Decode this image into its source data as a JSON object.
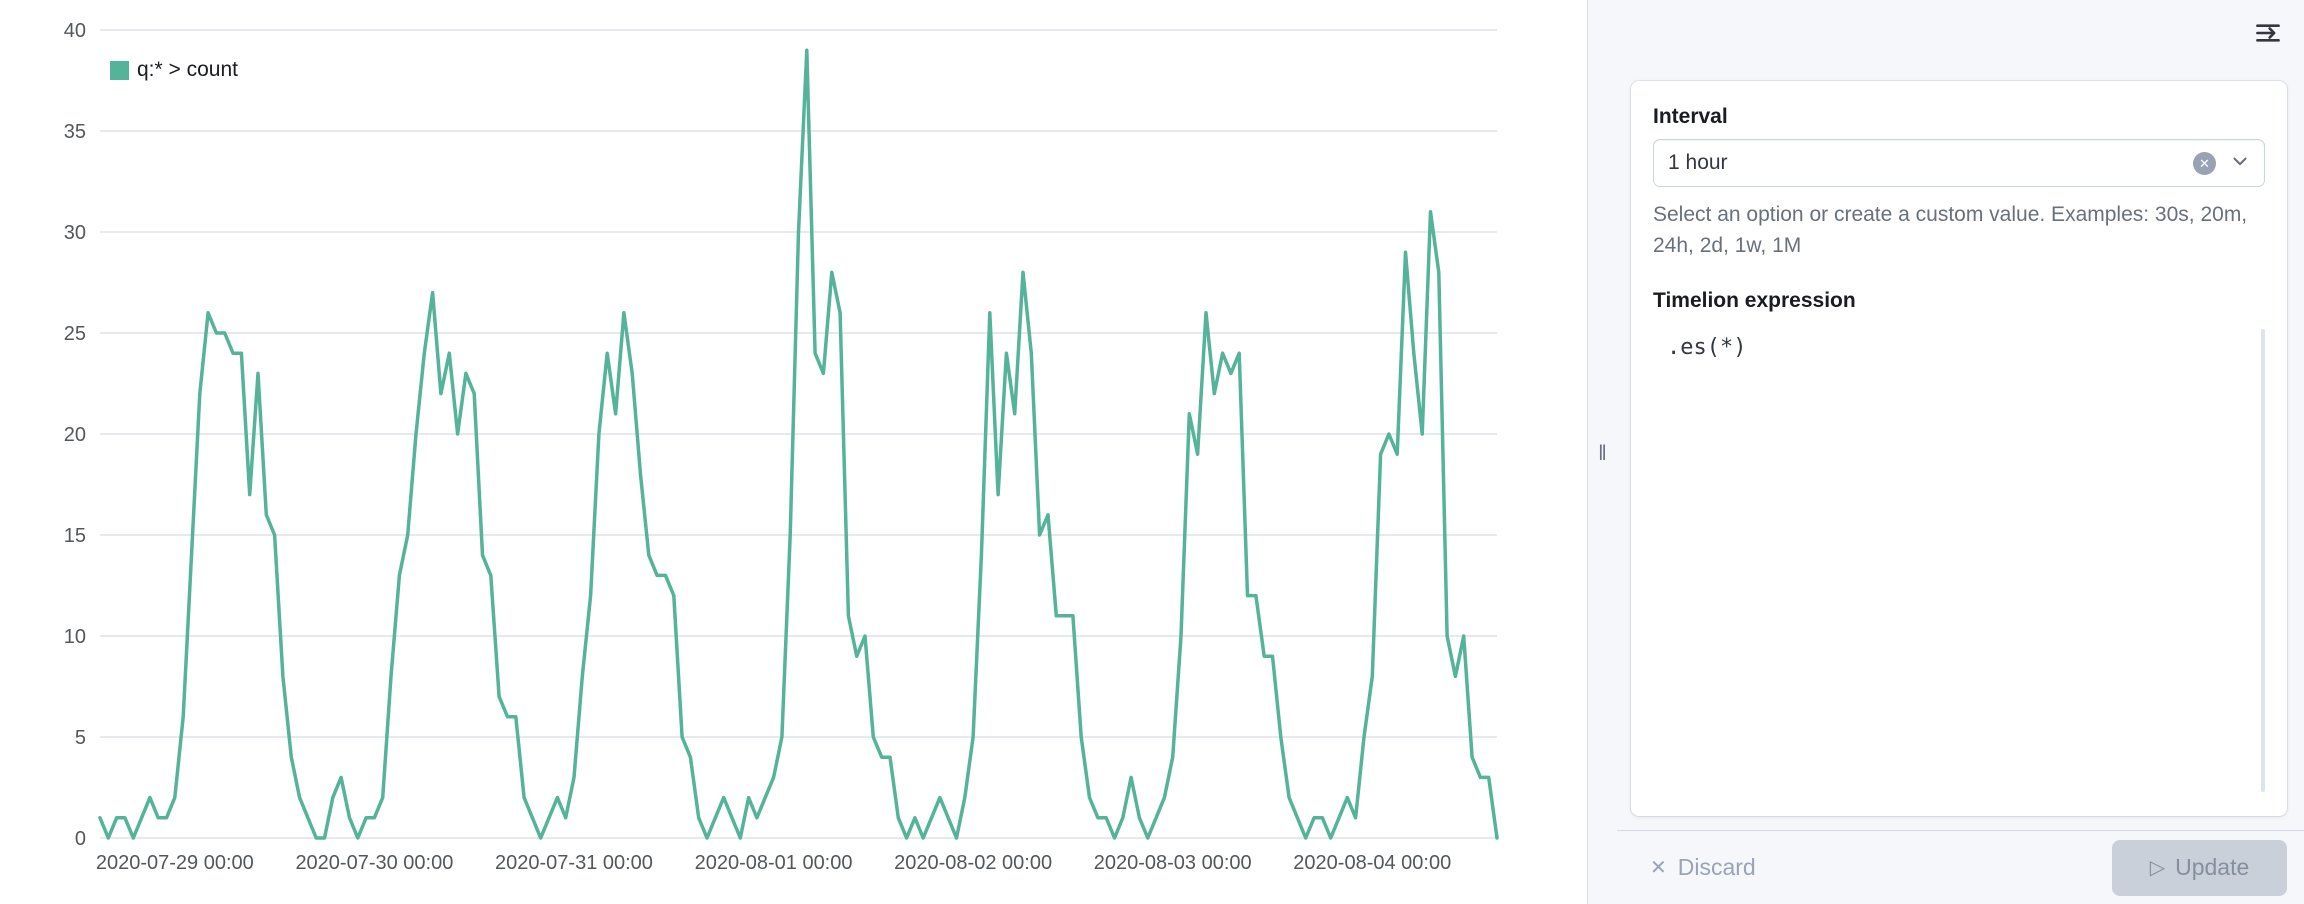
{
  "panel": {
    "interval_label": "Interval",
    "interval_value": "1 hour",
    "interval_help": "Select an option or create a custom value. Examples: 30s, 20m, 24h, 2d, 1w, 1M",
    "expression_label": "Timelion expression",
    "expression_value": ".es(*)",
    "discard_label": "Discard",
    "update_label": "Update"
  },
  "icons": {
    "clear_glyph": "✕",
    "discard_glyph": "✕",
    "play_glyph": "▷",
    "resizer_grip": "‖"
  },
  "colors": {
    "series": "#54B399",
    "panel_bg": "#F5F7FA",
    "grid": "#E7EAED",
    "axis_text": "#53575A"
  },
  "chart_data": {
    "type": "line",
    "legend": "q:* > count",
    "color": "#54B399",
    "start": "2020-07-28 15:00",
    "interval": "1h",
    "ylim": [
      0,
      40
    ],
    "y_ticks": [
      0,
      5,
      10,
      15,
      20,
      25,
      30,
      35,
      40
    ],
    "x_tick_labels": [
      "2020-07-29 00:00",
      "2020-07-30 00:00",
      "2020-07-31 00:00",
      "2020-08-01 00:00",
      "2020-08-02 00:00",
      "2020-08-03 00:00",
      "2020-08-04 00:00"
    ],
    "x_tick_indices": [
      9,
      33,
      57,
      81,
      105,
      129,
      153
    ],
    "grid": true,
    "legend_position": "top-left",
    "values": [
      1,
      0,
      1,
      1,
      0,
      1,
      2,
      1,
      1,
      2,
      6,
      14,
      22,
      26,
      25,
      25,
      24,
      24,
      17,
      23,
      16,
      15,
      8,
      4,
      2,
      1,
      0,
      0,
      2,
      3,
      1,
      0,
      1,
      1,
      2,
      8,
      13,
      15,
      20,
      24,
      27,
      22,
      24,
      20,
      23,
      22,
      14,
      13,
      7,
      6,
      6,
      2,
      1,
      0,
      1,
      2,
      1,
      3,
      8,
      12,
      20,
      24,
      21,
      26,
      23,
      18,
      14,
      13,
      13,
      12,
      5,
      4,
      1,
      0,
      1,
      2,
      1,
      0,
      2,
      1,
      2,
      3,
      5,
      15,
      30,
      39,
      24,
      23,
      28,
      26,
      11,
      9,
      10,
      5,
      4,
      4,
      1,
      0,
      1,
      0,
      1,
      2,
      1,
      0,
      2,
      5,
      14,
      26,
      17,
      24,
      21,
      28,
      24,
      15,
      16,
      11,
      11,
      11,
      5,
      2,
      1,
      1,
      0,
      1,
      3,
      1,
      0,
      1,
      2,
      4,
      10,
      21,
      19,
      26,
      22,
      24,
      23,
      24,
      12,
      12,
      9,
      9,
      5,
      2,
      1,
      0,
      1,
      1,
      0,
      1,
      2,
      1,
      5,
      8,
      19,
      20,
      19,
      29,
      24,
      20,
      31,
      28,
      10,
      8,
      10,
      4,
      3,
      3,
      0
    ]
  }
}
